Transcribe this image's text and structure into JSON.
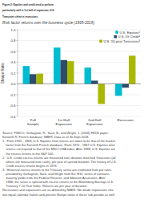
{
  "chart_data": {
    "type": "bar",
    "title": "Figure 2: Equities and credit tend to perform\nparticularly well in 1st half of expansion; U.S.\nTreasuries shine in recessions",
    "subtitle": "Risk factor returns over the business cycle (1965-2018)",
    "categories": [
      "Full\nSample",
      "1st Half\nExpansion",
      "2nd Half\nExpansion",
      "Recession"
    ],
    "series": [
      {
        "name": "U.S. Equities¹",
        "color": "#00BCD0",
        "values": [
          0.33,
          0.67,
          0.3,
          -0.22
        ]
      },
      {
        "name": "U.S. IG Credit²",
        "color": "#2D4B6B",
        "values": [
          0.18,
          0.44,
          0.06,
          -0.07
        ]
      },
      {
        "name": "U.S. 10-year Treasuries³",
        "color": "#A8B800",
        "values": [
          0.19,
          0.42,
          -0.37,
          0.52
        ]
      }
    ],
    "ylabel": "Sharpe Ratio",
    "ylim": [
      -0.6,
      1.0
    ],
    "yticks": [
      -0.6,
      -0.4,
      -0.2,
      {
        "value": 0.0,
        "label": "0.0"
      },
      0.2,
      0.4,
      0.6,
      0.8,
      {
        "value": 1.0,
        "label": "1.0"
      }
    ],
    "grid": true,
    "legend": "upper right",
    "footnote": [
      "Source: PIMCO; Gurkaynak, R., Sack, B., and Wright, J. (2006) FEDS paper;",
      "Kenneth R. French database; NBER. Data as of 30-Sept-2018.",
      "1.  From 1955 - 1969, U.S. Equities total returns are taken to be that of the market",
      "    factor from the Kenneth French database. From 1970 - 1987 U.S. Equities total",
      "    returns correspond to that of the MSCI USA Index. After 1988, U.S. Equities are",
      "    the excess returns to the S&P 500.",
      "2.  U.S. Credit excess returns are measured over duration-matched Treasuries (all",
      "    others are measured over cash), per year of spread duration. The history of U.S.",
      "    Credit excess returns begins in 1973.",
      "3.  Historical excess returns to the Treasury series are estimated from par rates",
      "    provided by Gurkaynok, Sack, and Wright from the ‘H15’ series of constant-",
      "    maturity yields from the Federal Reserve, and Ibbotson Associates. After",
      "    1988, the series is spliced with excess returns to the Bloomberg Barclays U.S.",
      "    Treasury 7-10 Year Index. Returns are per year of duration.",
      "Recessions and expansions are as defined by NBER. We divide expansions into",
      "two equal calendar halves and present Sharpe ratios in these sub-periods as well."
    ]
  }
}
